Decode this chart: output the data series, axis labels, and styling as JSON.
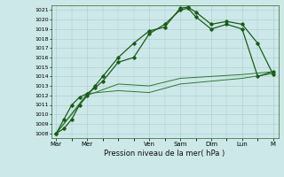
{
  "title": "",
  "xlabel": "Pression niveau de la mer( hPa )",
  "ylabel": "",
  "bg_color": "#cce8e8",
  "grid_color": "#aacccc",
  "line_color_main": "#1a5c1a",
  "line_color_light": "#2d7a2d",
  "ylim": [
    1007.5,
    1021.5
  ],
  "yticks": [
    1008,
    1009,
    1010,
    1011,
    1012,
    1013,
    1014,
    1015,
    1016,
    1017,
    1018,
    1019,
    1020,
    1021
  ],
  "day_labels": [
    "Mar",
    "Mer",
    "Ven",
    "Sam",
    "Dim",
    "Lun",
    "M"
  ],
  "day_positions": [
    0,
    24,
    72,
    96,
    120,
    144,
    168
  ],
  "series1_x": [
    0,
    6,
    12,
    18,
    24,
    30,
    36,
    48,
    60,
    72,
    84,
    96,
    102,
    108,
    120,
    132,
    144,
    156,
    168
  ],
  "series1_y": [
    1008.0,
    1008.5,
    1009.5,
    1011.0,
    1012.0,
    1013.0,
    1014.0,
    1016.0,
    1017.5,
    1018.8,
    1019.2,
    1021.2,
    1021.3,
    1020.8,
    1019.5,
    1019.8,
    1019.5,
    1017.5,
    1014.2
  ],
  "series2_x": [
    0,
    6,
    12,
    18,
    24,
    30,
    36,
    48,
    60,
    72,
    84,
    96,
    102,
    108,
    120,
    132,
    144,
    156,
    168
  ],
  "series2_y": [
    1008.0,
    1009.5,
    1011.0,
    1011.8,
    1012.2,
    1012.8,
    1013.5,
    1015.5,
    1016.0,
    1018.5,
    1019.5,
    1021.0,
    1021.2,
    1020.3,
    1019.0,
    1019.5,
    1019.0,
    1014.0,
    1014.5
  ],
  "series3_x": [
    0,
    24,
    48,
    72,
    96,
    120,
    144,
    168
  ],
  "series3_y": [
    1008.0,
    1012.0,
    1013.2,
    1013.0,
    1013.8,
    1014.0,
    1014.2,
    1014.5
  ],
  "series4_x": [
    0,
    24,
    48,
    72,
    96,
    120,
    144,
    168
  ],
  "series4_y": [
    1008.0,
    1012.2,
    1012.5,
    1012.3,
    1013.2,
    1013.5,
    1013.8,
    1014.3
  ]
}
